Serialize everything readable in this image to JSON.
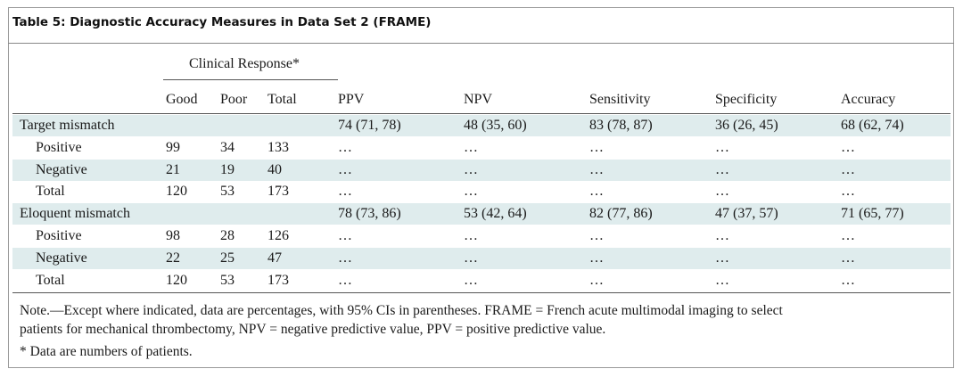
{
  "title": "Table 5: Diagnostic Accuracy Measures in Data Set 2 (FRAME)",
  "group_header": "Clinical Response*",
  "columns": [
    "Good",
    "Poor",
    "Total",
    "PPV",
    "NPV",
    "Sensitivity",
    "Specificity",
    "Accuracy"
  ],
  "rows": [
    {
      "label": "Target mismatch",
      "indent": false,
      "shaded": true,
      "cells": [
        "",
        "",
        "",
        "74 (71, 78)",
        "48 (35, 60)",
        "83 (78, 87)",
        "36 (26, 45)",
        "68 (62, 74)"
      ]
    },
    {
      "label": "Positive",
      "indent": true,
      "shaded": false,
      "cells": [
        "99",
        "34",
        "133",
        "…",
        "…",
        "…",
        "…",
        "…"
      ]
    },
    {
      "label": "Negative",
      "indent": true,
      "shaded": true,
      "cells": [
        "21",
        "19",
        "40",
        "…",
        "…",
        "…",
        "…",
        "…"
      ]
    },
    {
      "label": "Total",
      "indent": true,
      "shaded": false,
      "cells": [
        "120",
        "53",
        "173",
        "…",
        "…",
        "…",
        "…",
        "…"
      ]
    },
    {
      "label": "Eloquent mismatch",
      "indent": false,
      "shaded": true,
      "cells": [
        "",
        "",
        "",
        "78 (73, 86)",
        "53 (42, 64)",
        "82 (77, 86)",
        "47 (37, 57)",
        "71 (65, 77)"
      ]
    },
    {
      "label": "Positive",
      "indent": true,
      "shaded": false,
      "cells": [
        "98",
        "28",
        "126",
        "…",
        "…",
        "…",
        "…",
        "…"
      ]
    },
    {
      "label": "Negative",
      "indent": true,
      "shaded": true,
      "cells": [
        "22",
        "25",
        "47",
        "…",
        "…",
        "…",
        "…",
        "…"
      ]
    },
    {
      "label": "Total",
      "indent": true,
      "shaded": false,
      "cells": [
        "120",
        "53",
        "173",
        "…",
        "…",
        "…",
        "…",
        "…"
      ]
    }
  ],
  "notes": {
    "line1": "Note.—Except where indicated, data are percentages, with 95% CIs in parentheses. FRAME = French acute multimodal imaging to select",
    "line2": "patients for mechanical thrombectomy, NPV = negative predictive value, PPV = positive predictive value.",
    "line3": "* Data are numbers of patients."
  },
  "colors": {
    "shaded_row": "#dfeced",
    "rule": "#555555"
  }
}
